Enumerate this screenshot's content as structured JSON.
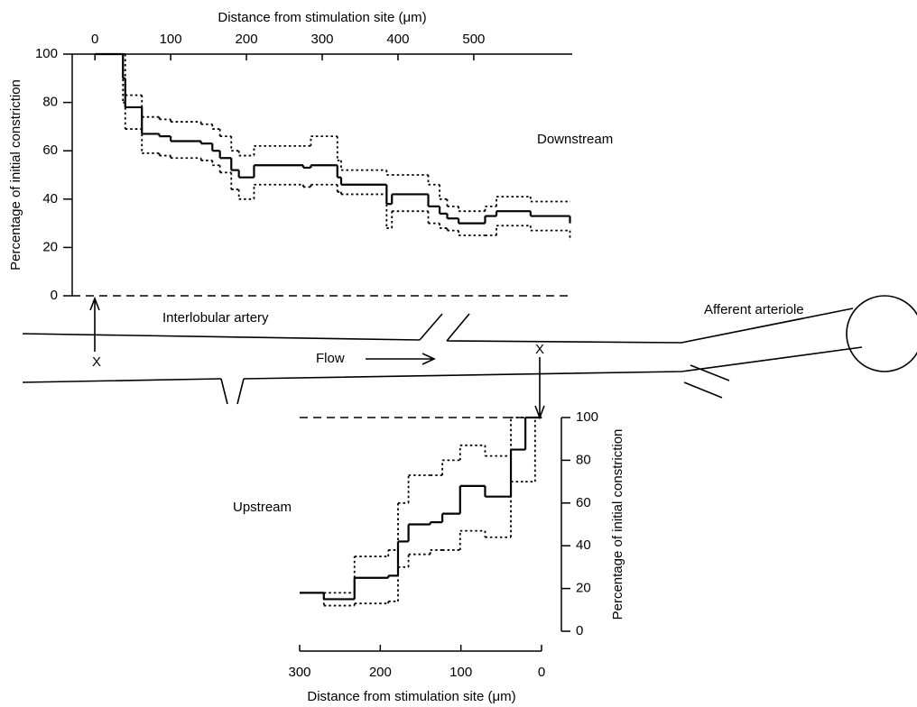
{
  "chart_data": [
    {
      "type": "step",
      "xlabel": "Distance from stimulation site (μm)",
      "ylabel": "Percentage of initial constriction",
      "annotation": "Downstream",
      "xlim": [
        -30,
        630
      ],
      "ylim": [
        0,
        100
      ],
      "xticks": [
        0,
        100,
        200,
        300,
        400,
        500
      ],
      "yticks": [
        0,
        20,
        40,
        60,
        80,
        100
      ],
      "color": "#000000",
      "x": [
        0,
        37,
        40,
        62,
        85,
        100,
        140,
        155,
        165,
        180,
        190,
        210,
        275,
        285,
        320,
        325,
        385,
        392,
        440,
        455,
        465,
        480,
        515,
        530,
        575,
        627
      ],
      "series": [
        {
          "dash": "solid",
          "values": [
            100,
            90,
            78,
            67,
            66,
            64,
            63,
            60,
            57,
            52,
            49,
            54,
            53,
            54,
            49,
            46,
            38,
            42,
            37,
            34,
            32,
            30,
            33,
            35,
            33,
            30
          ]
        },
        {
          "dash": "dotted",
          "values": [
            100,
            100,
            83,
            74,
            73,
            72,
            71,
            69,
            66,
            60,
            58,
            62,
            62,
            66,
            56,
            52,
            50,
            50,
            46,
            40,
            37,
            35,
            37,
            41,
            39,
            39
          ]
        },
        {
          "dash": "dotted",
          "values": [
            100,
            80,
            69,
            59,
            58,
            57,
            56,
            54,
            51,
            44,
            40,
            46,
            45,
            46,
            43,
            42,
            28,
            35,
            30,
            28,
            27,
            25,
            25,
            29,
            27,
            23
          ]
        }
      ]
    },
    {
      "type": "step",
      "xlabel": "Distance from stimulation site (μm)",
      "ylabel": "Percentage of initial constriction",
      "annotation": "Upstream",
      "xlim": [
        300,
        0
      ],
      "ylim": [
        0,
        100
      ],
      "xticks": [
        300,
        200,
        100,
        0
      ],
      "yticks": [
        0,
        20,
        40,
        60,
        80,
        100
      ],
      "color": "#000000",
      "x": [
        300,
        270,
        232,
        190,
        178,
        165,
        138,
        123,
        101,
        70,
        38,
        20,
        8,
        0
      ],
      "series": [
        {
          "dash": "solid",
          "values": [
            18,
            15,
            25,
            26,
            42,
            50,
            51,
            55,
            68,
            63,
            85,
            100,
            100,
            100
          ]
        },
        {
          "dash": "dotted",
          "values": [
            18,
            18,
            35,
            38,
            60,
            73,
            73,
            80,
            87,
            82,
            100,
            100,
            100,
            100
          ]
        },
        {
          "dash": "dotted",
          "values": [
            18,
            12,
            13,
            14,
            30,
            36,
            38,
            38,
            47,
            44,
            70,
            70,
            100,
            100
          ]
        }
      ]
    }
  ],
  "diagram": {
    "vessel": "Interlobular artery",
    "arteriole": "Afferent arteriole",
    "flow": "Flow",
    "marker_downstream": "X",
    "marker_upstream": "X"
  }
}
